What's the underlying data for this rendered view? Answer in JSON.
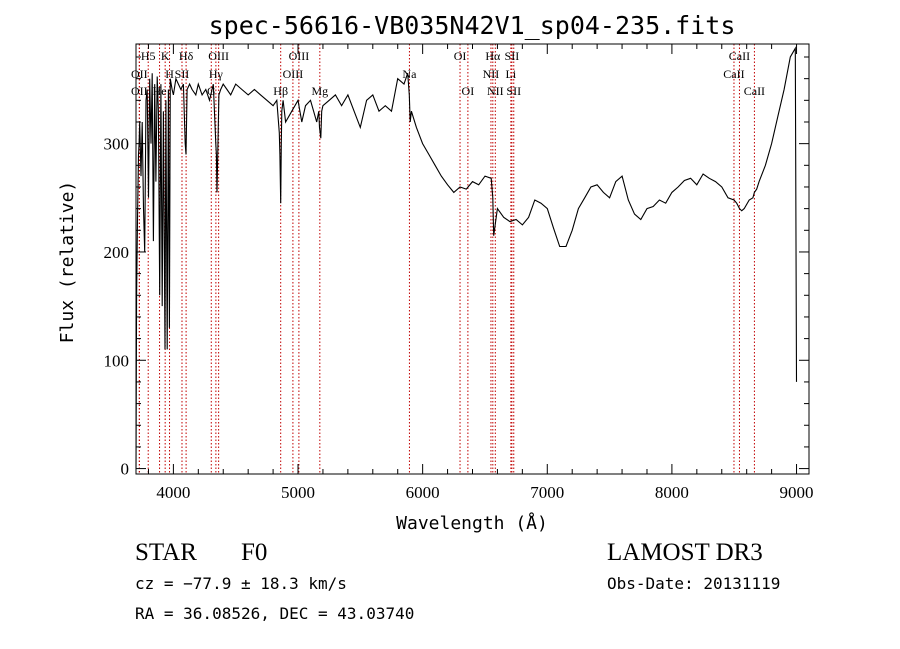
{
  "chart_data": {
    "type": "line",
    "title": "spec-56616-VB035N42V1_sp04-235.fits",
    "xlabel": "Wavelength (Å)",
    "ylabel": "Flux (relative)",
    "xlim": [
      3700,
      9100
    ],
    "ylim": [
      -5,
      392
    ],
    "x_ticks": [
      4000,
      5000,
      6000,
      7000,
      8000,
      9000
    ],
    "y_ticks": [
      0,
      100,
      200,
      300
    ],
    "grid": false,
    "series": [
      {
        "name": "flux",
        "x": [
          3700,
          3705,
          3712,
          3720,
          3725,
          3730,
          3740,
          3750,
          3760,
          3770,
          3780,
          3790,
          3800,
          3810,
          3820,
          3830,
          3840,
          3850,
          3860,
          3870,
          3880,
          3890,
          3900,
          3910,
          3920,
          3930,
          3933,
          3940,
          3950,
          3960,
          3968,
          3975,
          3990,
          4000,
          4020,
          4040,
          4060,
          4080,
          4095,
          4101,
          4110,
          4130,
          4150,
          4180,
          4200,
          4230,
          4260,
          4290,
          4320,
          4340,
          4345,
          4350,
          4365,
          4380,
          4400,
          4430,
          4460,
          4500,
          4550,
          4600,
          4650,
          4700,
          4750,
          4800,
          4830,
          4850,
          4855,
          4861,
          4866,
          4870,
          4880,
          4900,
          4950,
          5000,
          5030,
          5060,
          5100,
          5150,
          5167,
          5172,
          5183,
          5190,
          5200,
          5250,
          5300,
          5350,
          5400,
          5450,
          5500,
          5550,
          5600,
          5650,
          5700,
          5750,
          5800,
          5850,
          5880,
          5893,
          5900,
          5910,
          5950,
          6000,
          6050,
          6100,
          6150,
          6200,
          6250,
          6300,
          6350,
          6400,
          6450,
          6500,
          6550,
          6563,
          6570,
          6600,
          6650,
          6700,
          6750,
          6800,
          6850,
          6900,
          6950,
          7000,
          7050,
          7100,
          7150,
          7200,
          7250,
          7300,
          7350,
          7400,
          7450,
          7500,
          7550,
          7600,
          7650,
          7700,
          7750,
          7800,
          7850,
          7900,
          7950,
          8000,
          8050,
          8100,
          8150,
          8200,
          8250,
          8300,
          8350,
          8400,
          8450,
          8498,
          8520,
          8542,
          8560,
          8580,
          8620,
          8650,
          8662,
          8680,
          8700,
          8750,
          8800,
          8850,
          8900,
          8950,
          8990,
          9000
        ],
        "values": [
          0,
          160,
          230,
          290,
          300,
          320,
          270,
          320,
          240,
          200,
          340,
          350,
          250,
          360,
          300,
          365,
          210,
          355,
          265,
          362,
          330,
          160,
          355,
          150,
          330,
          150,
          110,
          340,
          110,
          350,
          130,
          360,
          350,
          345,
          360,
          355,
          350,
          355,
          300,
          290,
          350,
          355,
          350,
          345,
          355,
          345,
          350,
          340,
          355,
          300,
          290,
          255,
          345,
          350,
          355,
          350,
          345,
          355,
          350,
          345,
          350,
          345,
          340,
          335,
          340,
          310,
          290,
          245,
          300,
          330,
          340,
          320,
          330,
          340,
          320,
          335,
          340,
          320,
          330,
          315,
          305,
          330,
          335,
          340,
          345,
          335,
          345,
          330,
          315,
          340,
          345,
          330,
          335,
          330,
          360,
          355,
          365,
          345,
          320,
          330,
          315,
          300,
          290,
          280,
          270,
          262,
          255,
          260,
          258,
          265,
          262,
          270,
          268,
          250,
          215,
          240,
          232,
          228,
          230,
          225,
          232,
          248,
          245,
          240,
          222,
          205,
          205,
          220,
          240,
          250,
          260,
          262,
          255,
          250,
          265,
          270,
          248,
          235,
          230,
          240,
          242,
          248,
          245,
          255,
          260,
          266,
          268,
          262,
          272,
          268,
          265,
          260,
          250,
          248,
          245,
          240,
          238,
          240,
          248,
          250,
          255,
          258,
          265,
          280,
          300,
          325,
          350,
          380,
          388,
          80
        ]
      }
    ],
    "line_markers": [
      {
        "name": "H5",
        "x": 3798,
        "label": "H5",
        "row": 0
      },
      {
        "name": "OII",
        "x": 3727,
        "label": "OII",
        "row": 1
      },
      {
        "name": "OII",
        "x": 3727,
        "label": "OII",
        "row": 2
      },
      {
        "name": "K",
        "x": 3934,
        "label": "K",
        "row": 0
      },
      {
        "name": "H",
        "x": 3969,
        "label": "H",
        "row": 1
      },
      {
        "name": "He",
        "x": 3889,
        "label": "He",
        "row": 2
      },
      {
        "name": "Hd",
        "x": 4102,
        "label": "Hδ",
        "row": 0
      },
      {
        "name": "SII",
        "x": 4069,
        "label": "SII",
        "row": 1
      },
      {
        "name": "G",
        "x": 4304,
        "label": "G",
        "row": 2
      },
      {
        "name": "OIII",
        "x": 4363,
        "label": "OIII",
        "row": 0
      },
      {
        "name": "Hg",
        "x": 4341,
        "label": "Hγ",
        "row": 1
      },
      {
        "name": "Hb",
        "x": 4861,
        "label": "Hβ",
        "row": 2
      },
      {
        "name": "OIII",
        "x": 4959,
        "label": "OIII",
        "row": 1
      },
      {
        "name": "OIII",
        "x": 5007,
        "label": "OIII",
        "row": 0
      },
      {
        "name": "Mg",
        "x": 5175,
        "label": "Mg",
        "row": 2
      },
      {
        "name": "Na",
        "x": 5894,
        "label": "Na",
        "row": 1
      },
      {
        "name": "OI",
        "x": 6300,
        "label": "OI",
        "row": 0
      },
      {
        "name": "OI",
        "x": 6363,
        "label": "OI",
        "row": 2
      },
      {
        "name": "Ha",
        "x": 6563,
        "label": "Hα",
        "row": 0
      },
      {
        "name": "NII",
        "x": 6548,
        "label": "NII",
        "row": 1
      },
      {
        "name": "NII",
        "x": 6583,
        "label": "NII",
        "row": 2
      },
      {
        "name": "SII",
        "x": 6716,
        "label": "SII",
        "row": 0
      },
      {
        "name": "Li",
        "x": 6708,
        "label": "Li",
        "row": 1
      },
      {
        "name": "SII",
        "x": 6731,
        "label": "SII",
        "row": 2
      },
      {
        "name": "CaII",
        "x": 8542,
        "label": "CaII",
        "row": 0
      },
      {
        "name": "CaII",
        "x": 8498,
        "label": "CaII",
        "row": 1
      },
      {
        "name": "CaII",
        "x": 8662,
        "label": "CaII",
        "row": 2
      }
    ]
  },
  "info": {
    "object_type": "STAR",
    "subclass": "F0",
    "survey": "LAMOST DR3",
    "redshift": "cz = −77.9 ± 18.3 km/s",
    "obs_date": "Obs-Date: 20131119",
    "coords": "RA =  36.08526, DEC =  43.03740"
  }
}
